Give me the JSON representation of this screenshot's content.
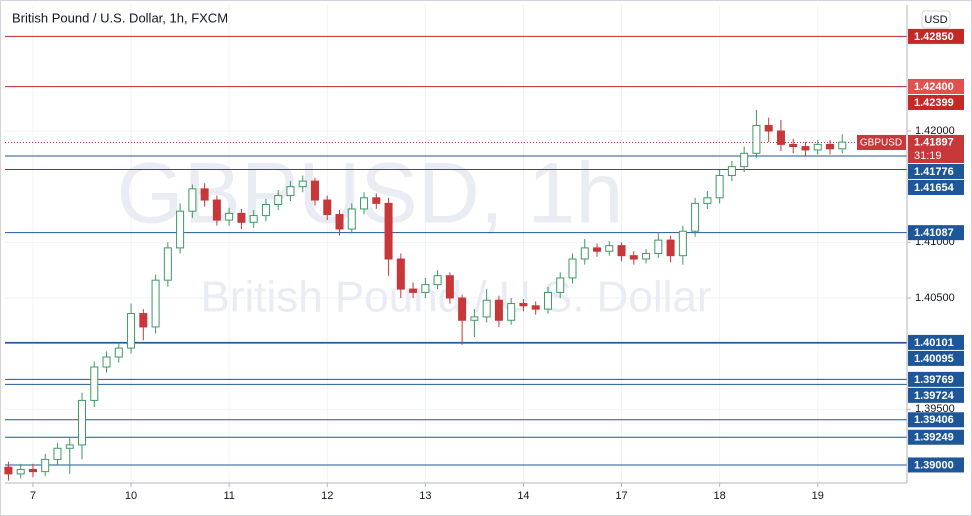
{
  "chart_data": {
    "type": "candlestick",
    "title": "British Pound / U.S. Dollar, 1h, FXCM",
    "watermark": "GBPUSD, 1h",
    "watermark_subtitle": "British Pound / U.S. Dollar",
    "currency": "USD",
    "symbol": "GBPUSD",
    "last": 1.41897,
    "countdown": "31:19",
    "up_color": "#3d9a62",
    "down_color": "#c8373a",
    "grid": true,
    "xlim": [
      -0.285,
      8.91
    ],
    "ylim": [
      1.38838,
      1.43132
    ],
    "xticks": [
      {
        "value": 0,
        "label": "7"
      },
      {
        "value": 1,
        "label": "10"
      },
      {
        "value": 2,
        "label": "11"
      },
      {
        "value": 3,
        "label": "12"
      },
      {
        "value": 4,
        "label": "13"
      },
      {
        "value": 5,
        "label": "14"
      },
      {
        "value": 6,
        "label": "17"
      },
      {
        "value": 7,
        "label": "18"
      },
      {
        "value": 8,
        "label": "19"
      }
    ],
    "yticks": [
      {
        "value": 1.395,
        "label": "1.39500"
      },
      {
        "value": 1.405,
        "label": "1.40500"
      },
      {
        "value": 1.41,
        "label": "1.41000"
      },
      {
        "value": 1.42,
        "label": "1.42000"
      }
    ],
    "levels": [
      {
        "value": 1.4285,
        "label": "1.42850",
        "color": "#c62828",
        "line": true
      },
      {
        "value": 1.424,
        "label": "1.42400",
        "color": "#e0524f",
        "line": false
      },
      {
        "value": 1.42399,
        "label": "1.42399",
        "color": "#c62828",
        "line": true
      },
      {
        "value": 1.41776,
        "label": "1.41776",
        "color": "#1e5799",
        "line": true
      },
      {
        "value": 1.41654,
        "label": "1.41654",
        "color": "#1e5799",
        "line": true
      },
      {
        "value": 1.41087,
        "label": "1.41087",
        "color": "#1e5799",
        "line": true
      },
      {
        "value": 1.40101,
        "label": "1.40101",
        "color": "#1e5799",
        "line": true
      },
      {
        "value": 1.40095,
        "label": "1.40095",
        "color": "#1e5799",
        "line": true
      },
      {
        "value": 1.39769,
        "label": "1.39769",
        "color": "#1e5799",
        "line": true
      },
      {
        "value": 1.39724,
        "label": "1.39724",
        "color": "#1e5799",
        "line": true
      },
      {
        "value": 1.39406,
        "label": "1.39406",
        "color": "#1e5799",
        "line": true
      },
      {
        "value": 1.39249,
        "label": "1.39249",
        "color": "#1e5799",
        "line": true
      },
      {
        "value": 1.39,
        "label": "1.39000",
        "color": "#1e5799",
        "line": true
      }
    ],
    "x": [
      -0.25,
      -0.125,
      0,
      0.125,
      0.25,
      0.375,
      0.5,
      0.625,
      0.75,
      0.875,
      1,
      1.125,
      1.25,
      1.375,
      1.5,
      1.625,
      1.75,
      1.875,
      2,
      2.125,
      2.25,
      2.375,
      2.5,
      2.625,
      2.75,
      2.875,
      3,
      3.125,
      3.25,
      3.375,
      3.5,
      3.625,
      3.75,
      3.875,
      4,
      4.125,
      4.25,
      4.375,
      4.5,
      4.625,
      4.75,
      4.875,
      5,
      5.125,
      5.25,
      5.375,
      5.5,
      5.625,
      5.75,
      5.875,
      6,
      6.125,
      6.25,
      6.375,
      6.5,
      6.625,
      6.75,
      6.875,
      7,
      7.125,
      7.25,
      7.375,
      7.5,
      7.625,
      7.75,
      7.875,
      8,
      8.125,
      8.25
    ],
    "open": [
      1.3898,
      1.3892,
      1.3896,
      1.3894,
      1.3905,
      1.3915,
      1.3918,
      1.3958,
      1.3988,
      1.3997,
      1.4005,
      1.4036,
      1.4024,
      1.4066,
      1.4095,
      1.4128,
      1.4148,
      1.4138,
      1.412,
      1.4126,
      1.4118,
      1.4124,
      1.4134,
      1.4142,
      1.415,
      1.4155,
      1.4138,
      1.4125,
      1.4112,
      1.413,
      1.414,
      1.4135,
      1.4085,
      1.4058,
      1.4055,
      1.4062,
      1.407,
      1.405,
      1.403,
      1.4033,
      1.4048,
      1.403,
      1.4045,
      1.4043,
      1.404,
      1.4055,
      1.4068,
      1.4085,
      1.4095,
      1.4092,
      1.4097,
      1.4088,
      1.4085,
      1.409,
      1.4102,
      1.4088,
      1.411,
      1.4135,
      1.414,
      1.416,
      1.4168,
      1.418,
      1.4205,
      1.42,
      1.4188,
      1.4186,
      1.4183,
      1.4188,
      1.4184
    ],
    "high": [
      1.3903,
      1.3901,
      1.3901,
      1.391,
      1.392,
      1.3925,
      1.3965,
      1.3993,
      1.4002,
      1.401,
      1.4045,
      1.404,
      1.4071,
      1.41,
      1.4135,
      1.4152,
      1.4153,
      1.4142,
      1.4131,
      1.413,
      1.4129,
      1.4139,
      1.4147,
      1.4155,
      1.416,
      1.4158,
      1.4142,
      1.4129,
      1.4135,
      1.4145,
      1.4144,
      1.414,
      1.409,
      1.4064,
      1.4068,
      1.4075,
      1.4073,
      1.4053,
      1.404,
      1.4058,
      1.4052,
      1.405,
      1.4049,
      1.4047,
      1.406,
      1.4073,
      1.409,
      1.4103,
      1.4099,
      1.4101,
      1.41,
      1.4092,
      1.4094,
      1.4108,
      1.4106,
      1.4115,
      1.414,
      1.4146,
      1.4165,
      1.4173,
      1.4186,
      1.4219,
      1.4212,
      1.421,
      1.4193,
      1.419,
      1.4192,
      1.4192,
      1.4197
    ],
    "low": [
      1.3886,
      1.3888,
      1.3889,
      1.389,
      1.39,
      1.3892,
      1.3905,
      1.3952,
      1.3983,
      1.3992,
      1.4,
      1.4012,
      1.4018,
      1.406,
      1.409,
      1.4122,
      1.4132,
      1.4115,
      1.4115,
      1.4112,
      1.4113,
      1.4119,
      1.4129,
      1.4137,
      1.4145,
      1.4133,
      1.412,
      1.4106,
      1.4108,
      1.4125,
      1.413,
      1.407,
      1.405,
      1.405,
      1.405,
      1.4058,
      1.4045,
      1.4008,
      1.4015,
      1.4028,
      1.4024,
      1.4026,
      1.4038,
      1.4035,
      1.4036,
      1.405,
      1.4063,
      1.408,
      1.4087,
      1.4088,
      1.4083,
      1.408,
      1.4081,
      1.4086,
      1.4082,
      1.408,
      1.4105,
      1.413,
      1.4135,
      1.4155,
      1.4163,
      1.4176,
      1.419,
      1.4182,
      1.418,
      1.4178,
      1.4179,
      1.4179,
      1.418
    ],
    "close": [
      1.3892,
      1.3896,
      1.3894,
      1.3905,
      1.3915,
      1.3918,
      1.3958,
      1.3988,
      1.3997,
      1.4005,
      1.4036,
      1.4024,
      1.4066,
      1.4095,
      1.4128,
      1.4148,
      1.4138,
      1.412,
      1.4126,
      1.4118,
      1.4124,
      1.4134,
      1.4142,
      1.415,
      1.4155,
      1.4138,
      1.4125,
      1.4112,
      1.413,
      1.414,
      1.4135,
      1.4085,
      1.4058,
      1.4055,
      1.4062,
      1.407,
      1.405,
      1.403,
      1.4033,
      1.4048,
      1.403,
      1.4045,
      1.4043,
      1.404,
      1.4055,
      1.4068,
      1.4085,
      1.4095,
      1.4092,
      1.4097,
      1.4088,
      1.4085,
      1.409,
      1.4102,
      1.4088,
      1.411,
      1.4135,
      1.414,
      1.416,
      1.4168,
      1.418,
      1.4205,
      1.42,
      1.4188,
      1.4186,
      1.4183,
      1.4188,
      1.4184,
      1.419
    ]
  }
}
